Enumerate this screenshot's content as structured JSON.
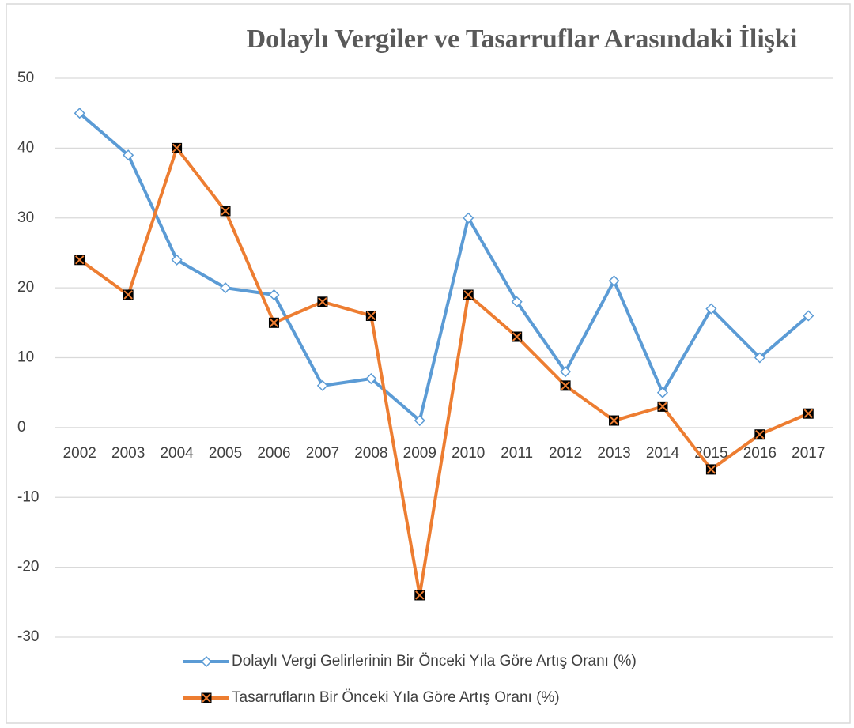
{
  "chart_data": {
    "type": "line",
    "title": "Dolaylı Vergiler ve Tasarruflar Arasındaki İlişki",
    "categories": [
      "2002",
      "2003",
      "2004",
      "2005",
      "2006",
      "2007",
      "2008",
      "2009",
      "2010",
      "2011",
      "2012",
      "2013",
      "2014",
      "2015",
      "2016",
      "2017"
    ],
    "series": [
      {
        "name": "Dolaylı Vergi Gelirlerinin Bir Önceki Yıla Göre Artış Oranı (%)",
        "color": "#5b9bd5",
        "marker": "diamond",
        "values": [
          45,
          39,
          24,
          20,
          19,
          6,
          7,
          1,
          30,
          18,
          8,
          21,
          5,
          17,
          10,
          16
        ]
      },
      {
        "name": "Tasarrufların Bir Önceki Yıla Göre Artış Oranı (%)",
        "color": "#ed7d31",
        "marker": "square",
        "values": [
          24,
          19,
          40,
          31,
          15,
          18,
          16,
          -24,
          19,
          13,
          6,
          1,
          3,
          -6,
          -1,
          2
        ]
      }
    ],
    "ylim": [
      -30,
      50
    ],
    "yticks": [
      -30,
      -20,
      -10,
      0,
      10,
      20,
      30,
      40,
      50
    ],
    "grid": true,
    "legend": "bottom"
  }
}
